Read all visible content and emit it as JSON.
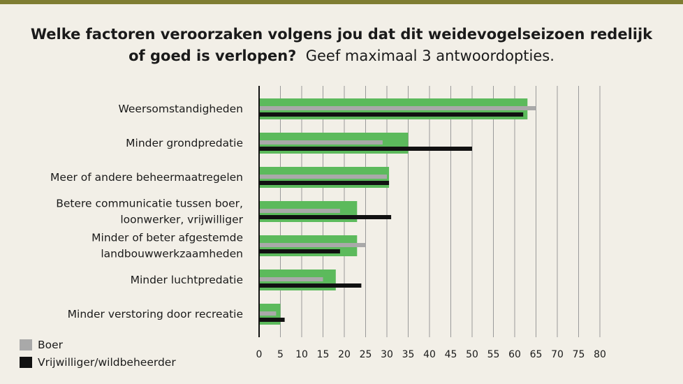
{
  "colors": {
    "topbar": "#7f7d32",
    "total": "#5cba5c",
    "boer": "#a9a9a9",
    "vrijwilliger": "#111111",
    "grid": "#9a9a9a",
    "axis": "#111111"
  },
  "title": {
    "line1": "Welke factoren veroorzaken volgens jou dat dit weidevogelseizoen redelijk",
    "line2_bold": "of goed is verlopen?",
    "line2_normal": "Geef maximaal 3 antwoordopties."
  },
  "chart_data": {
    "type": "bar",
    "orientation": "horizontal",
    "categories": [
      [
        "Weersomstandigheden"
      ],
      [
        "Minder grondpredatie"
      ],
      [
        "Meer of andere beheermaatregelen"
      ],
      [
        "Betere communicatie tussen boer,",
        "loonwerker, vrijwilliger"
      ],
      [
        "Minder of beter afgestemde",
        "landbouwwerkzaamheden"
      ],
      [
        "Minder luchtpredatie"
      ],
      [
        "Minder verstoring door recreatie"
      ]
    ],
    "series": [
      {
        "values": [
          63,
          35,
          30.5,
          23,
          23,
          18,
          5
        ]
      },
      {
        "name": "Boer",
        "values": [
          65,
          29,
          30,
          19,
          25,
          15,
          4
        ]
      },
      {
        "name": "Vrijwilliger/wildbeheerder",
        "values": [
          62,
          50,
          30.5,
          31,
          19,
          24,
          6
        ]
      }
    ],
    "xlim": [
      0,
      80
    ],
    "xticks": [
      "0",
      "5",
      "10",
      "15",
      "20",
      "25",
      "30",
      "35",
      "40",
      "45",
      "50",
      "55",
      "60",
      "65",
      "70",
      "75",
      "80"
    ],
    "grid": true,
    "legend": "bottom-left"
  },
  "legend": {
    "boer": "Boer",
    "vrijwilliger": "Vrijwilliger/wildbeheerder"
  }
}
